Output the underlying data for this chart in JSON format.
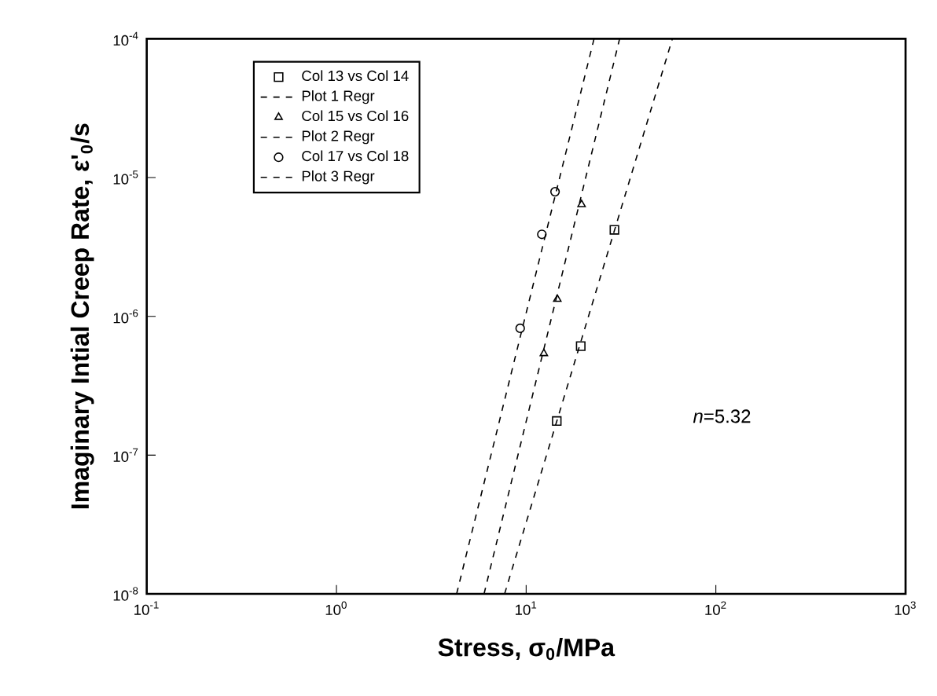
{
  "chart_data": {
    "type": "scatter",
    "xlabel": "Stress, σ$_{0}$/MPa",
    "ylabel": "Imaginary Intial Creep Rate, ε'$_{0}$/s",
    "log": "xy",
    "legend": "top left",
    "xlim": [
      0.1,
      1000
    ],
    "ylim": [
      1e-08,
      0.0001
    ],
    "xticks": [
      {
        "value": 0.1,
        "label": "10$^{-1}$"
      },
      {
        "value": 1,
        "label": "10$^{0}$"
      },
      {
        "value": 10,
        "label": "10$^{1}$"
      },
      {
        "value": 100,
        "label": "10$^{2}$"
      },
      {
        "value": 1000,
        "label": "10$^{3}$"
      }
    ],
    "yticks": [
      {
        "value": 1e-08,
        "label": "10$^{-8}$"
      },
      {
        "value": 1e-07,
        "label": "10$^{-7}$"
      },
      {
        "value": 1e-06,
        "label": "10$^{-6}$"
      },
      {
        "value": 1e-05,
        "label": "10$^{-5}$"
      },
      {
        "value": 0.0001,
        "label": "10$^{-4}$"
      }
    ],
    "annotations": [
      "*n*=5.32"
    ],
    "series": [
      {
        "name": "Col 13 vs Col 14",
        "marker": "square",
        "color": "#000000",
        "x": [
          29.2,
          19.4,
          14.5
        ],
        "values": [
          4.2e-06,
          6.1e-07,
          1.76e-07
        ]
      },
      {
        "name": "Plot 1 Regr",
        "type": "line",
        "marker": "none",
        "line_style": "dashed",
        "color": "#000000",
        "x": [
          7.7,
          59
        ],
        "values": [
          1e-08,
          0.0001
        ]
      },
      {
        "name": "Col 15 vs Col 16",
        "marker": "triangle",
        "color": "#000000",
        "x": [
          19.6,
          14.6,
          12.4
        ],
        "values": [
          6.4e-06,
          1.33e-06,
          5.4e-07
        ]
      },
      {
        "name": "Plot 2 Regr",
        "type": "line",
        "marker": "none",
        "line_style": "dashed",
        "color": "#000000",
        "x": [
          6.0,
          31.1
        ],
        "values": [
          1e-08,
          0.0001
        ]
      },
      {
        "name": "Col 17 vs Col 18",
        "marker": "circle",
        "color": "#000000",
        "x": [
          14.2,
          12.1,
          9.3
        ],
        "values": [
          7.9e-06,
          3.9e-06,
          8.2e-07
        ]
      },
      {
        "name": "Plot 3 Regr",
        "type": "line",
        "marker": "none",
        "line_style": "dashed",
        "color": "#000000",
        "x": [
          4.3,
          22.8
        ],
        "values": [
          1e-08,
          0.0001
        ]
      }
    ]
  }
}
